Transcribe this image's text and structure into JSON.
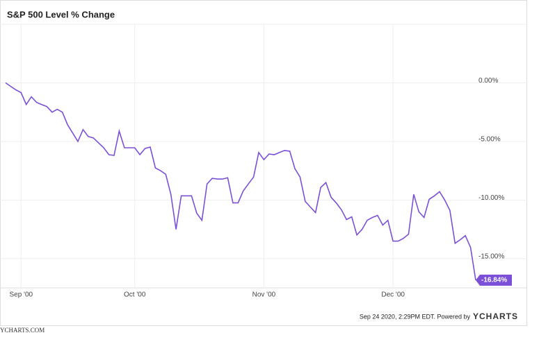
{
  "chart_data": {
    "type": "line",
    "title": "S&P 500 Level % Change",
    "categories": [
      null,
      null,
      null,
      "Sep '00",
      null,
      null,
      null,
      null,
      null,
      null,
      null,
      null,
      null,
      null,
      null,
      null,
      null,
      null,
      null,
      null,
      null,
      null,
      null,
      null,
      null,
      "Oct '00",
      null,
      null,
      null,
      null,
      null,
      null,
      null,
      null,
      null,
      null,
      null,
      null,
      null,
      null,
      null,
      null,
      null,
      null,
      null,
      null,
      null,
      null,
      null,
      null,
      "Nov '00",
      null,
      null,
      null,
      null,
      null,
      null,
      null,
      null,
      null,
      null,
      null,
      null,
      null,
      null,
      null,
      null,
      null,
      null,
      null,
      null,
      null,
      null,
      null,
      null,
      "Dec '00",
      null,
      null,
      null,
      null,
      null,
      null,
      null,
      null,
      null,
      null,
      null,
      null,
      null,
      null,
      null,
      null
    ],
    "series": [
      {
        "name": "S&P 500 Level % Change",
        "color": "#7b4fd8",
        "values": [
          0,
          -0.3,
          -0.6,
          -0.83,
          -1.85,
          -1.19,
          -1.67,
          -1.85,
          -2.02,
          -2.5,
          -2.26,
          -2.5,
          -3.57,
          -4.29,
          -5.0,
          -3.99,
          -4.58,
          -4.7,
          -5.12,
          -5.54,
          -6.13,
          -6.19,
          -4.11,
          -5.54,
          -5.54,
          -5.54,
          -6.13,
          -5.6,
          -5.48,
          -7.26,
          -7.5,
          -7.8,
          -9.52,
          -12.5,
          -9.64,
          -9.64,
          -9.64,
          -11.13,
          -11.73,
          -8.63,
          -8.15,
          -8.21,
          -8.21,
          -8.1,
          -10.24,
          -10.24,
          -9.23,
          -8.63,
          -8.04,
          -5.95,
          -6.55,
          -6.07,
          -6.13,
          -5.95,
          -5.77,
          -5.83,
          -7.32,
          -8.04,
          -10.12,
          -10.6,
          -11.07,
          -8.93,
          -8.51,
          -9.76,
          -10.24,
          -10.83,
          -11.67,
          -11.43,
          -12.98,
          -12.5,
          -11.73,
          -11.49,
          -11.31,
          -12.14,
          -11.73,
          -13.51,
          -13.51,
          -13.27,
          -12.92,
          -9.52,
          -11.01,
          -11.49,
          -9.94,
          -9.64,
          -9.29,
          -10.0,
          -10.89,
          -13.69,
          -13.39,
          -13.04,
          -14.05,
          -16.84
        ],
        "value_labels": [
          null,
          null,
          null,
          null,
          null,
          null,
          null,
          null,
          null,
          null,
          null,
          null,
          null,
          null,
          null,
          null,
          null,
          null,
          null,
          null,
          null,
          null,
          null,
          null,
          null,
          null,
          null,
          null,
          null,
          null,
          null,
          null,
          null,
          null,
          null,
          null,
          null,
          null,
          null,
          null,
          null,
          null,
          null,
          null,
          null,
          null,
          null,
          null,
          null,
          null,
          null,
          null,
          null,
          null,
          null,
          null,
          null,
          null,
          null,
          null,
          null,
          null,
          null,
          null,
          null,
          null,
          null,
          null,
          null,
          null,
          null,
          null,
          null,
          null,
          null,
          null,
          null,
          null,
          null,
          null,
          null,
          null,
          null,
          null,
          null,
          null,
          null,
          null,
          null,
          null,
          null,
          "-16.84%"
        ]
      }
    ],
    "ylim": [
      -17.5,
      5
    ],
    "yticks": [
      {
        "value": 0,
        "label": "0.00%"
      },
      {
        "value": -5,
        "label": "-5.00%"
      },
      {
        "value": -10,
        "label": "-10.00%"
      },
      {
        "value": -15,
        "label": "-15.00%"
      }
    ],
    "grid": true,
    "footer": "Sep 24 2020, 2:29PM EDT. Powered by",
    "brand": "YCHARTS",
    "watermark": "YCHARTS.COM"
  }
}
